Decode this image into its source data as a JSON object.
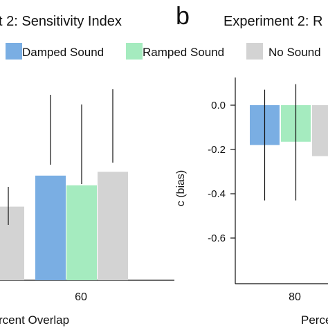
{
  "panel_a": {
    "title_visible": "t 2: Sensitivity Index",
    "xlabel_visible": "rcent Overlap"
  },
  "panel_b": {
    "letter": "b",
    "title_visible": "Experiment 2: R",
    "ylabel": "c (bias)",
    "xlabel_visible": "Perce"
  },
  "legend": [
    {
      "label": "Damped Sound",
      "color": "#7aaee3"
    },
    {
      "label": "Ramped Sound",
      "color": "#a5ebbf"
    },
    {
      "label": "No Sound",
      "color": "#d3d3d3"
    }
  ],
  "chart_data": [
    {
      "type": "bar",
      "panel": "a",
      "title": "t 2: Sensitivity Index",
      "xlabel": "rcent Overlap",
      "categories": [
        "60"
      ],
      "series": [
        {
          "name": "Damped Sound",
          "color": "#7aaee3",
          "values": [
            null
          ]
        },
        {
          "name": "Ramped Sound",
          "color": "#a5ebbf",
          "values": [
            null
          ]
        },
        {
          "name": "No Sound",
          "color": "#d3d3d3",
          "values": [
            null
          ]
        }
      ],
      "visible_bar_tops_fraction": [
        0.0,
        0.54,
        0.49,
        0.56
      ],
      "note_values_axis": "y axis not visible in crop"
    },
    {
      "type": "bar",
      "panel": "b",
      "title": "Experiment 2: R",
      "xlabel": "Perce",
      "ylabel": "c (bias)",
      "categories": [
        "80"
      ],
      "series": [
        {
          "name": "Damped Sound",
          "color": "#7aaee3",
          "values": [
            -0.18
          ],
          "err_low": [
            -0.43
          ],
          "err_high": [
            0.07
          ]
        },
        {
          "name": "Ramped Sound",
          "color": "#a5ebbf",
          "values": [
            -0.165
          ],
          "err_low": [
            -0.43
          ],
          "err_high": [
            0.095
          ]
        },
        {
          "name": "No Sound",
          "color": "#d3d3d3",
          "values": [
            -0.23
          ]
        }
      ],
      "yticks": [
        "0.0",
        "-0.2",
        "-0.4",
        "-0.6"
      ],
      "ylim": [
        -0.78,
        0.14
      ]
    }
  ]
}
